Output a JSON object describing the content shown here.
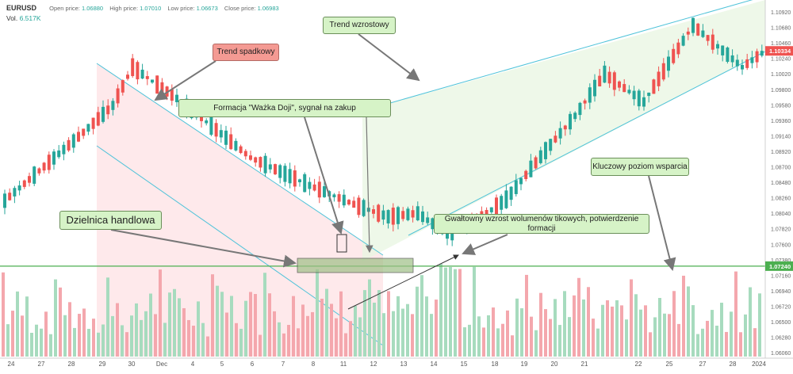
{
  "header": {
    "symbol": "EURUSD",
    "open_label": "Open price:",
    "open": "1.06880",
    "high_label": "High price:",
    "high": "1.07010",
    "low_label": "Low price:",
    "low": "1.06673",
    "close_label": "Close price:",
    "close": "1.06983",
    "vol_label": "Vol.",
    "vol": "6.517K"
  },
  "annotations": {
    "trend_down": "Trend spadkowy",
    "trend_up": "Trend wzrostowy",
    "doji": "Formacja \"Ważka Doji\", sygnał na zakup",
    "range": "Dzielnica handlowa",
    "volume_surge": "Gwałtowny wzrost wolumenów tikowych, potwierdzenie formacji",
    "support": "Kluczowy poziom wsparcia"
  },
  "colors": {
    "up": "#26a69a",
    "down": "#ef5350",
    "vol_up": "#a7dbbe",
    "vol_down": "#f4a7ad",
    "channel": "#4fc3d9",
    "support_line": "#4caf50",
    "callout_green": "#d6f3c7",
    "callout_red": "#f49a93"
  },
  "chart_data": {
    "type": "candlestick",
    "x_ticks": [
      "24",
      "27",
      "28",
      "29",
      "30",
      "Dec",
      "4",
      "5",
      "6",
      "7",
      "8",
      "11",
      "12",
      "13",
      "14",
      "15",
      "18",
      "19",
      "20",
      "21",
      "22",
      "25",
      "27",
      "28",
      "2024"
    ],
    "y_ticks": [
      "1.10920",
      "1.10680",
      "1.10460",
      "1.10240",
      "1.10020",
      "1.09800",
      "1.09580",
      "1.09360",
      "1.09140",
      "1.08920",
      "1.08700",
      "1.08480",
      "1.08260",
      "1.08040",
      "1.07820",
      "1.07600",
      "1.07380",
      "1.07160",
      "1.06940",
      "1.06720",
      "1.06500",
      "1.06280",
      "1.06060"
    ],
    "price_labels": {
      "current": "1.10334",
      "support": "1.07240"
    },
    "ylim": [
      1.0594,
      1.1102
    ],
    "support_level": 1.0724,
    "candle_count": 124
  }
}
